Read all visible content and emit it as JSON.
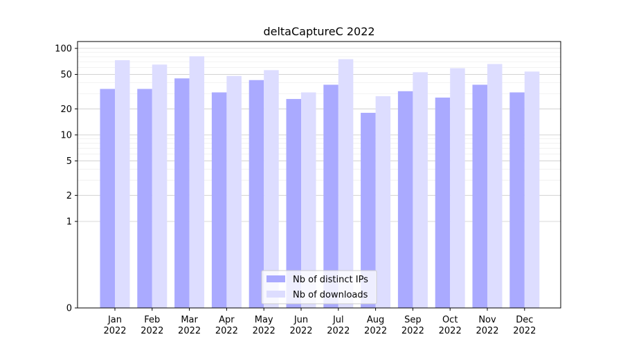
{
  "chart_data": {
    "type": "bar",
    "title": "deltaCaptureC 2022",
    "xlabel": "",
    "ylabel": "",
    "y_scale": "symlog",
    "ylim": [
      0,
      120
    ],
    "y_ticks": [
      0,
      1,
      2,
      5,
      10,
      20,
      50,
      100
    ],
    "categories": [
      [
        "Jan",
        "2022"
      ],
      [
        "Feb",
        "2022"
      ],
      [
        "Mar",
        "2022"
      ],
      [
        "Apr",
        "2022"
      ],
      [
        "May",
        "2022"
      ],
      [
        "Jun",
        "2022"
      ],
      [
        "Jul",
        "2022"
      ],
      [
        "Aug",
        "2022"
      ],
      [
        "Sep",
        "2022"
      ],
      [
        "Oct",
        "2022"
      ],
      [
        "Nov",
        "2022"
      ],
      [
        "Dec",
        "2022"
      ]
    ],
    "series": [
      {
        "name": "Nb of distinct IPs",
        "color": "#aaaaff",
        "values": [
          34,
          34,
          45,
          31,
          43,
          26,
          38,
          18,
          32,
          27,
          38,
          31
        ]
      },
      {
        "name": "Nb of downloads",
        "color": "#ddddff",
        "values": [
          73,
          65,
          81,
          48,
          56,
          31,
          75,
          28,
          53,
          59,
          66,
          54
        ]
      }
    ],
    "grid": true,
    "legend_position": "bottom-center"
  }
}
